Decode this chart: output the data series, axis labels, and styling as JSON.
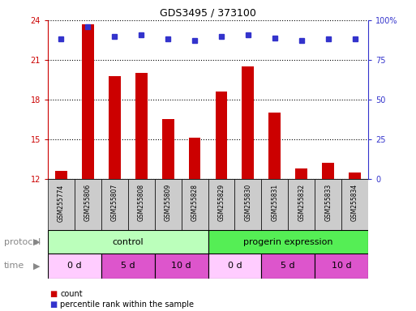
{
  "title": "GDS3495 / 373100",
  "samples": [
    "GSM255774",
    "GSM255806",
    "GSM255807",
    "GSM255808",
    "GSM255809",
    "GSM255828",
    "GSM255829",
    "GSM255830",
    "GSM255831",
    "GSM255832",
    "GSM255833",
    "GSM255834"
  ],
  "red_values": [
    12.6,
    23.7,
    19.8,
    20.0,
    16.5,
    15.1,
    18.6,
    20.5,
    17.0,
    12.8,
    13.2,
    12.5
  ],
  "blue_values": [
    88,
    96,
    90,
    91,
    88,
    87,
    90,
    91,
    89,
    87,
    88,
    88
  ],
  "ylim_left": [
    12,
    24
  ],
  "ylim_right": [
    0,
    100
  ],
  "yticks_left": [
    12,
    15,
    18,
    21,
    24
  ],
  "yticks_right": [
    0,
    25,
    50,
    75,
    100
  ],
  "red_color": "#cc0000",
  "blue_color": "#3333cc",
  "grid_color": "#888888",
  "bar_width": 0.45,
  "protocol_colors": [
    "#bbffbb",
    "#55ee55"
  ],
  "time_colors": [
    "#ffccff",
    "#dd55cc",
    "#dd55cc",
    "#ffccff",
    "#dd55cc",
    "#dd55cc"
  ],
  "bg_color": "#ffffff",
  "xtick_bg": "#cccccc"
}
